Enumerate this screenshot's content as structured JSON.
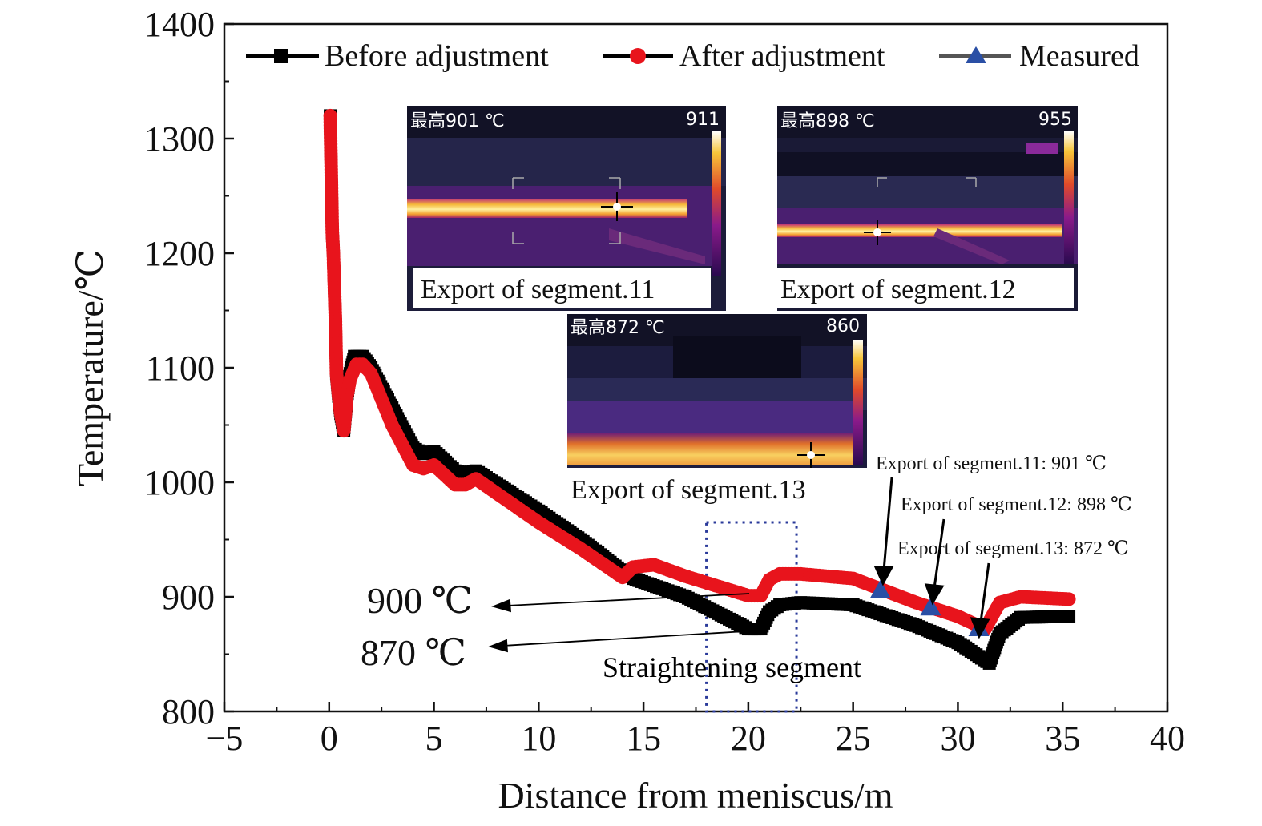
{
  "chart_data": {
    "type": "scatter",
    "xlabel": "Distance from meniscus/m",
    "ylabel": "Temperature/℃",
    "xlim": [
      -5,
      40
    ],
    "ylim": [
      800,
      1400
    ],
    "x_ticks": [
      "−5",
      "0",
      "5",
      "10",
      "15",
      "20",
      "25",
      "30",
      "35",
      "40"
    ],
    "y_ticks": [
      "800",
      "900",
      "1000",
      "1100",
      "1200",
      "1300",
      "1400"
    ],
    "legend_position": "top",
    "series": [
      {
        "name": "Before adjustment",
        "color": "#000000",
        "marker": "square",
        "points": [
          [
            0.05,
            1320
          ],
          [
            0.15,
            1218
          ],
          [
            0.2,
            1200
          ],
          [
            0.3,
            1140
          ],
          [
            0.35,
            1095
          ],
          [
            0.45,
            1075
          ],
          [
            0.55,
            1060
          ],
          [
            0.7,
            1045
          ],
          [
            0.85,
            1075
          ],
          [
            1.0,
            1095
          ],
          [
            1.2,
            1110
          ],
          [
            1.6,
            1110
          ],
          [
            2.0,
            1100
          ],
          [
            3.0,
            1065
          ],
          [
            4.0,
            1030
          ],
          [
            4.5,
            1025
          ],
          [
            5.0,
            1027
          ],
          [
            6.0,
            1010
          ],
          [
            6.5,
            1008
          ],
          [
            7.0,
            1010
          ],
          [
            10.0,
            975
          ],
          [
            12.0,
            950
          ],
          [
            14.0,
            922
          ],
          [
            14.5,
            916
          ],
          [
            17.0,
            900
          ],
          [
            20.0,
            872
          ],
          [
            20.6,
            872
          ],
          [
            21.0,
            887
          ],
          [
            21.5,
            893
          ],
          [
            22.5,
            895
          ],
          [
            25.0,
            893
          ],
          [
            28.0,
            875
          ],
          [
            30.0,
            860
          ],
          [
            31.5,
            842
          ],
          [
            31.8,
            858
          ],
          [
            32.0,
            868
          ],
          [
            33.0,
            882
          ],
          [
            35.3,
            883
          ]
        ]
      },
      {
        "name": "After adjustment",
        "color": "#e8141c",
        "marker": "circle",
        "points": [
          [
            0.05,
            1320
          ],
          [
            0.15,
            1218
          ],
          [
            0.2,
            1200
          ],
          [
            0.3,
            1140
          ],
          [
            0.35,
            1095
          ],
          [
            0.45,
            1075
          ],
          [
            0.55,
            1060
          ],
          [
            0.7,
            1045
          ],
          [
            0.85,
            1075
          ],
          [
            1.0,
            1090
          ],
          [
            1.3,
            1103
          ],
          [
            1.6,
            1103
          ],
          [
            2.0,
            1095
          ],
          [
            3.0,
            1050
          ],
          [
            4.0,
            1015
          ],
          [
            4.5,
            1012
          ],
          [
            5.0,
            1015
          ],
          [
            6.0,
            998
          ],
          [
            6.5,
            998
          ],
          [
            7.0,
            1003
          ],
          [
            10.0,
            965
          ],
          [
            12.0,
            942
          ],
          [
            14.0,
            917
          ],
          [
            14.5,
            926
          ],
          [
            15.5,
            928
          ],
          [
            17.0,
            918
          ],
          [
            20.0,
            901
          ],
          [
            20.6,
            901
          ],
          [
            21.0,
            915
          ],
          [
            21.5,
            920
          ],
          [
            22.5,
            920
          ],
          [
            25.0,
            916
          ],
          [
            28.0,
            895
          ],
          [
            30.0,
            883
          ],
          [
            31.3,
            872
          ],
          [
            31.6,
            882
          ],
          [
            32.0,
            895
          ],
          [
            33.0,
            900
          ],
          [
            35.3,
            898
          ]
        ]
      },
      {
        "name": "Measured",
        "color": "#2a4fa5",
        "marker": "triangle",
        "points": [
          [
            26.3,
            905
          ],
          [
            28.7,
            890
          ],
          [
            31.0,
            872
          ]
        ]
      }
    ],
    "straightening_box": {
      "x": [
        18.0,
        22.3
      ],
      "y": [
        800,
        965
      ]
    },
    "annotations": {
      "seg11": "Export of segment.11: 901 ℃",
      "seg12": "Export of segment.12: 898 ℃",
      "seg13": "Export of segment.13: 872 ℃",
      "t900": "900 ℃",
      "t870": "870 ℃",
      "straightening": "Straightening segment"
    },
    "insets": [
      {
        "caption": "Export of segment.11",
        "max_label": "最高901 ℃",
        "scale_max": "911"
      },
      {
        "caption": "Export of segment.12",
        "max_label": "最高898 ℃",
        "scale_max": "955"
      },
      {
        "caption": "Export of segment.13",
        "max_label": "最高872 ℃",
        "scale_max": "860"
      }
    ]
  }
}
